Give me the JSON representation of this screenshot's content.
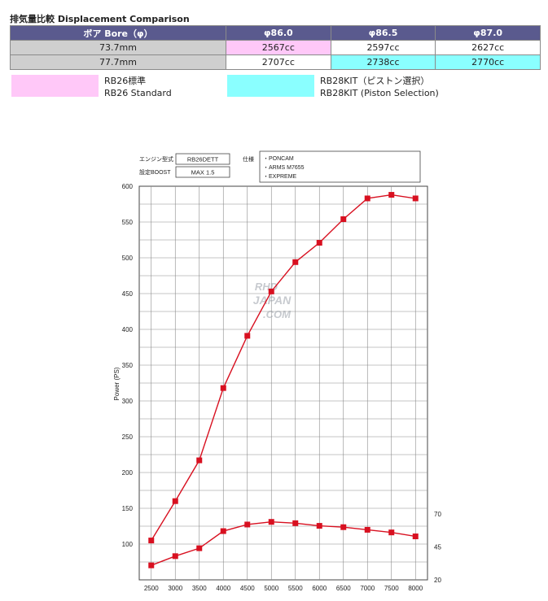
{
  "heading": "排気量比較 Displacement Comparison",
  "table": {
    "header": [
      "ボア Bore（φ）",
      "φ86.0",
      "φ86.5",
      "φ87.0"
    ],
    "rows": [
      {
        "stroke": "73.7mm",
        "cells": [
          "2567cc",
          "2597cc",
          "2627cc"
        ]
      },
      {
        "stroke": "77.7mm",
        "cells": [
          "2707cc",
          "2738cc",
          "2770cc"
        ]
      }
    ],
    "colors": {
      "header": "#5a5a8e",
      "row_head": "#cfcfcf",
      "rb26": "#ffc8f8",
      "rb28": "#8affff"
    }
  },
  "legend": {
    "rb26": {
      "line1": "RB26標準",
      "line2": "RB26 Standard"
    },
    "rb28": {
      "line1": "RB28KIT（ピストン選択）",
      "line2": "RB28KIT (Piston Selection)"
    }
  },
  "spec": {
    "engine_label": "エンジン型式",
    "engine_value": "RB26DETT",
    "boost_label": "設定BOOST",
    "boost_value": "MAX 1.5",
    "parts_label": "仕様",
    "parts": [
      "・PONCAM",
      "・ARMS M7655",
      "・EXPREME"
    ]
  },
  "watermark": {
    "line1": "RHD",
    "line2": "JAPAN",
    "line3": ".COM"
  },
  "chart_data": {
    "type": "line",
    "ylabel": "Power (PS)",
    "x": [
      2500,
      3000,
      3500,
      4000,
      4500,
      5000,
      5500,
      6000,
      6500,
      7000,
      7500,
      8000
    ],
    "ylim": [
      50,
      600
    ],
    "yticks": [
      100,
      150,
      200,
      250,
      300,
      350,
      400,
      450,
      500,
      550,
      600
    ],
    "y2ticks": [
      20,
      45,
      70
    ],
    "y2lim": [
      20,
      70
    ],
    "grid": true,
    "color": "#d81020",
    "series": [
      {
        "values": [
          105,
          160,
          217,
          318,
          391,
          453,
          494,
          521,
          554,
          583,
          588,
          583
        ]
      },
      {
        "axis": "right",
        "values": [
          31,
          38,
          44,
          57,
          62,
          64,
          63,
          61,
          60,
          58,
          56,
          53
        ]
      }
    ]
  }
}
